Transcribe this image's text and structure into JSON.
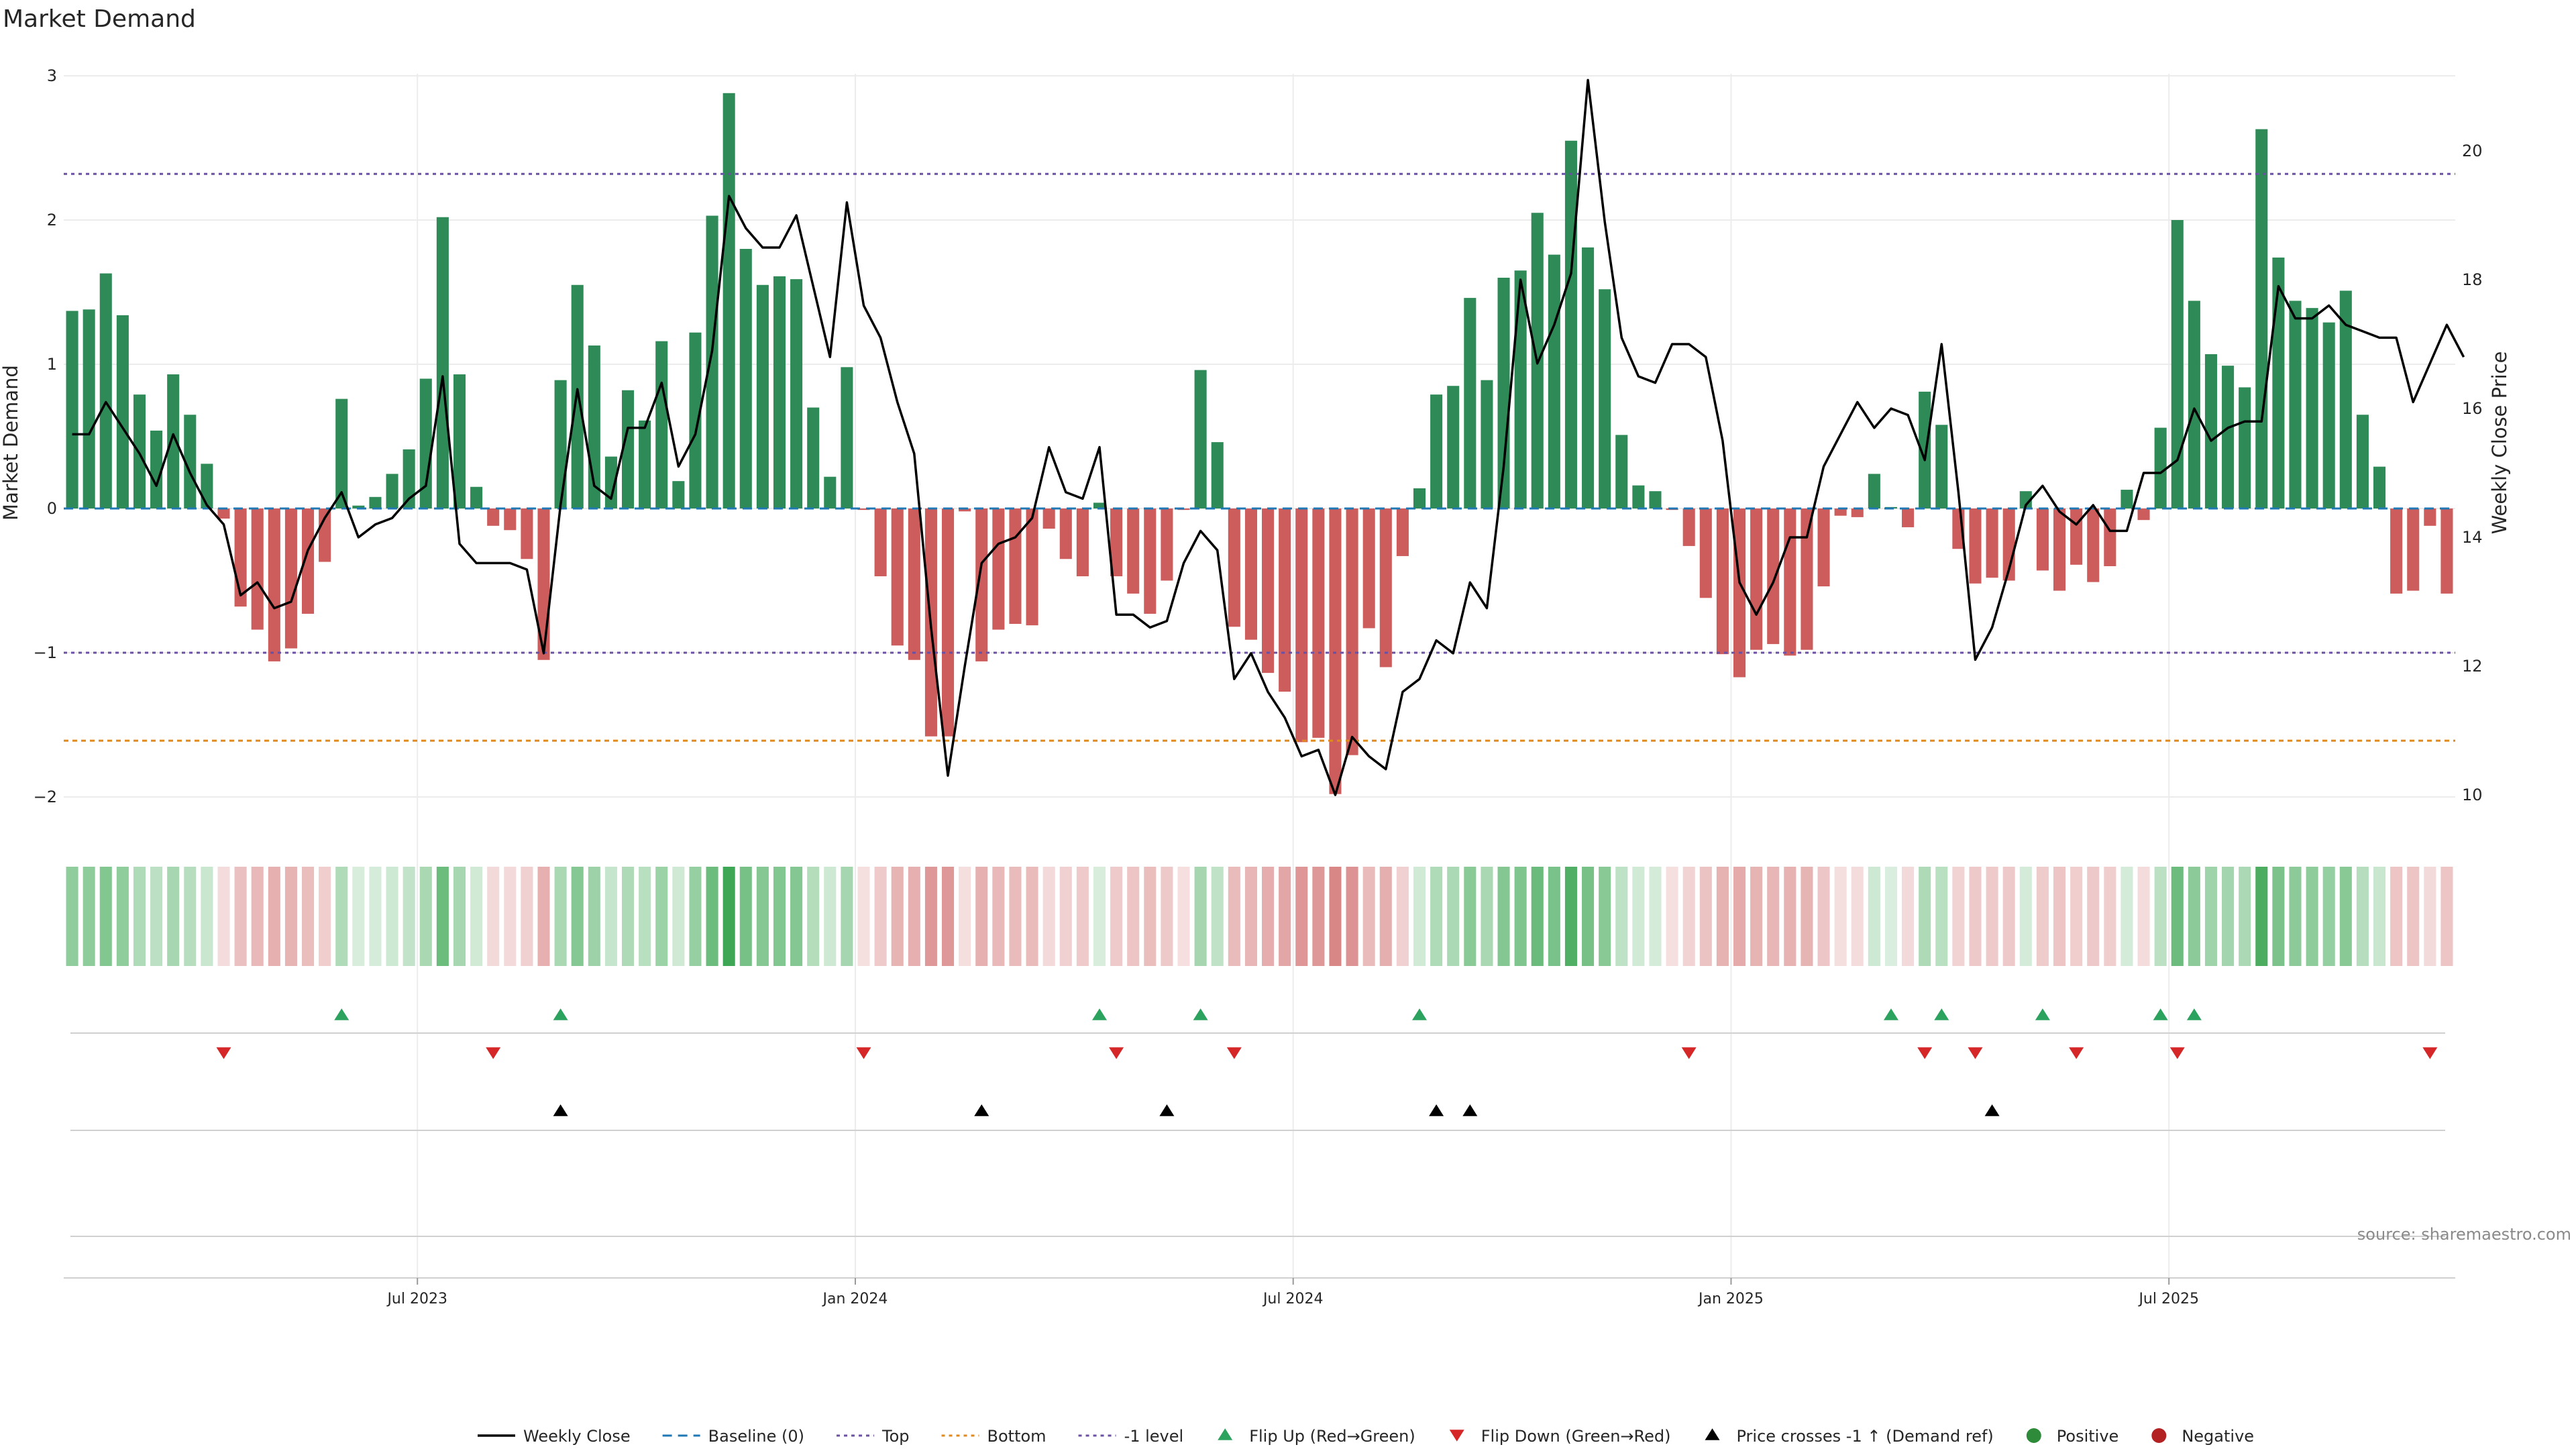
{
  "chart_data": {
    "type": "bar",
    "title": "Market Demand",
    "ylabel_left": "Market Demand",
    "ylabel_right": "Weekly Close Price",
    "ylim_left": [
      -2.2,
      3.1
    ],
    "ylim_right": [
      9.7,
      21.5
    ],
    "yticks_left": [
      {
        "value": 3,
        "label": "3"
      },
      {
        "value": 2,
        "label": "2"
      },
      {
        "value": 1,
        "label": "1"
      },
      {
        "value": 0,
        "label": "0"
      },
      {
        "value": -1,
        "label": "−1"
      },
      {
        "value": -2,
        "label": "−2"
      }
    ],
    "yticks_right": [
      {
        "value": 20,
        "label": "20"
      },
      {
        "value": 18,
        "label": "18"
      },
      {
        "value": 16,
        "label": "16"
      },
      {
        "value": 14,
        "label": "14"
      },
      {
        "value": 12,
        "label": "12"
      },
      {
        "value": 10,
        "label": "10"
      }
    ],
    "reference_lines": {
      "top": 2.32,
      "minus_one": -1.0,
      "bottom": -1.61,
      "baseline": 0
    },
    "x_ticks": [
      {
        "index": 21,
        "label": "Jul 2023"
      },
      {
        "index": 47,
        "label": "Jan 2024"
      },
      {
        "index": 73,
        "label": "Jul 2024"
      },
      {
        "index": 99,
        "label": "Jan 2025"
      },
      {
        "index": 125,
        "label": "Jul 2025"
      }
    ],
    "demand": [
      1.37,
      1.38,
      1.63,
      1.34,
      0.79,
      0.54,
      0.93,
      0.65,
      0.31,
      -0.07,
      -0.68,
      -0.84,
      -1.06,
      -0.97,
      -0.73,
      -0.37,
      0.76,
      0.02,
      0.08,
      0.24,
      0.41,
      0.9,
      2.02,
      0.93,
      0.15,
      -0.12,
      -0.15,
      -0.35,
      -1.05,
      0.89,
      1.55,
      1.13,
      0.36,
      0.82,
      0.61,
      1.16,
      0.19,
      1.22,
      2.03,
      2.88,
      1.8,
      1.55,
      1.61,
      1.59,
      0.7,
      0.22,
      0.98,
      -0.01,
      -0.47,
      -0.95,
      -1.05,
      -1.58,
      -1.58,
      -0.02,
      -1.06,
      -0.84,
      -0.8,
      -0.81,
      -0.14,
      -0.35,
      -0.47,
      0.04,
      -0.47,
      -0.59,
      -0.73,
      -0.5,
      -0.01,
      0.96,
      0.46,
      -0.82,
      -0.91,
      -1.14,
      -1.27,
      -1.62,
      -1.59,
      -1.98,
      -1.71,
      -0.83,
      -1.1,
      -0.33,
      0.14,
      0.79,
      0.85,
      1.46,
      0.89,
      1.6,
      1.65,
      2.05,
      1.76,
      2.55,
      1.81,
      1.52,
      0.51,
      0.16,
      0.12,
      -0.01,
      -0.26,
      -0.62,
      -1.01,
      -1.17,
      -0.98,
      -0.94,
      -1.02,
      -0.98,
      -0.54,
      -0.05,
      -0.06,
      0.24,
      0.01,
      -0.13,
      0.81,
      0.58,
      -0.28,
      -0.52,
      -0.48,
      -0.5,
      0.12,
      -0.43,
      -0.57,
      -0.39,
      -0.51,
      -0.4,
      0.13,
      -0.08,
      0.56,
      2.0,
      1.44,
      1.07,
      0.99,
      0.84,
      2.63,
      1.74,
      1.44,
      1.39,
      1.29,
      1.51,
      0.65,
      0.29,
      -0.59,
      -0.57,
      -0.12,
      -0.59
    ],
    "price": [
      15.6,
      15.6,
      16.1,
      15.7,
      15.3,
      14.8,
      15.6,
      15.0,
      14.5,
      14.2,
      13.1,
      13.3,
      12.9,
      13.0,
      13.8,
      14.3,
      14.7,
      14.0,
      14.2,
      14.3,
      14.6,
      14.8,
      16.5,
      13.9,
      13.6,
      13.6,
      13.6,
      13.5,
      12.2,
      14.5,
      16.3,
      14.8,
      14.6,
      15.7,
      15.7,
      16.4,
      15.1,
      15.6,
      16.9,
      19.3,
      18.8,
      18.5,
      18.5,
      19.0,
      17.9,
      16.8,
      19.2,
      17.6,
      17.1,
      16.1,
      15.3,
      12.6,
      10.3,
      12.0,
      13.6,
      13.9,
      14.0,
      14.3,
      15.4,
      14.7,
      14.6,
      15.4,
      12.8,
      12.8,
      12.6,
      12.7,
      13.6,
      14.1,
      13.8,
      11.8,
      12.2,
      11.6,
      11.2,
      10.6,
      10.7,
      10.0,
      10.9,
      10.6,
      10.4,
      11.6,
      11.8,
      12.4,
      12.2,
      13.3,
      12.9,
      15.1,
      18.0,
      16.7,
      17.3,
      18.1,
      21.1,
      18.9,
      17.1,
      16.5,
      16.4,
      17.0,
      17.0,
      16.8,
      15.5,
      13.3,
      12.8,
      13.3,
      14.0,
      14.0,
      15.1,
      15.6,
      16.1,
      15.7,
      16.0,
      15.9,
      15.2,
      17.0,
      14.7,
      12.1,
      12.6,
      13.5,
      14.5,
      14.8,
      14.4,
      14.2,
      14.5,
      14.1,
      14.1,
      15.0,
      15.0,
      15.2,
      16.0,
      15.5,
      15.7,
      15.8,
      15.8,
      17.9,
      17.4,
      17.4,
      17.6,
      17.3,
      17.2,
      17.1,
      17.1,
      16.1,
      16.7,
      17.3,
      16.8
    ],
    "flip_up_indices": [
      16,
      29,
      61,
      67,
      80,
      108,
      111,
      117,
      124,
      126
    ],
    "flip_down_indices": [
      9,
      25,
      47,
      62,
      69,
      96,
      110,
      113,
      119,
      125,
      140
    ],
    "price_cross_indices": [
      29,
      54,
      65,
      81,
      83,
      114
    ],
    "legend": [
      {
        "key": "weekly_close",
        "label": "Weekly Close",
        "color": "#000000"
      },
      {
        "key": "baseline",
        "label": "Baseline (0)",
        "color": "#1f77b4"
      },
      {
        "key": "top",
        "label": "Top",
        "color": "#6a51a3"
      },
      {
        "key": "bottom",
        "label": "Bottom",
        "color": "#e08a1e"
      },
      {
        "key": "minus_one",
        "label": "-1 level",
        "color": "#6a51a3"
      },
      {
        "key": "flip_up",
        "label": "Flip Up (Red→Green)",
        "color": "#2ca25f"
      },
      {
        "key": "flip_down",
        "label": "Flip Down (Green→Red)",
        "color": "#d62728"
      },
      {
        "key": "price_cross",
        "label": "Price crosses -1 ↑ (Demand ref)",
        "color": "#000000"
      },
      {
        "key": "positive",
        "label": "Positive",
        "color": "#2e8b3a"
      },
      {
        "key": "negative",
        "label": "Negative",
        "color": "#b22222"
      }
    ],
    "source": "source: sharemaestro.com",
    "colors": {
      "positive_bar": "#2e8b57",
      "negative_bar": "#cd5c5c",
      "price_line": "#000000",
      "grid": "#ececec"
    }
  }
}
